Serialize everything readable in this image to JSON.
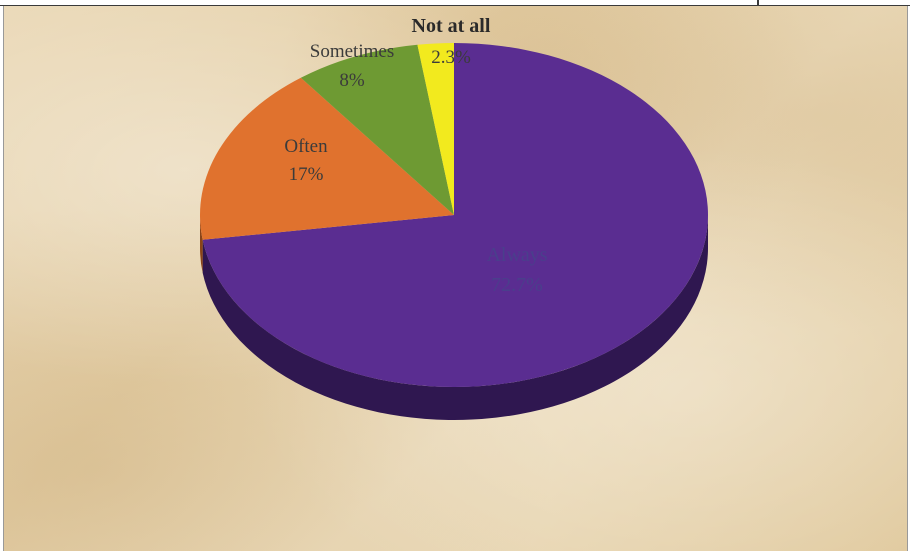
{
  "chart_data": {
    "type": "pie",
    "title": "",
    "three_d": true,
    "slices": [
      {
        "label": "Always",
        "value": 72.7,
        "value_label": "72.7%",
        "color": "#5a2d91",
        "side_color": "#2f1750"
      },
      {
        "label": "Often",
        "value": 17,
        "value_label": "17%",
        "color": "#e0722e",
        "side_color": "#8a4418"
      },
      {
        "label": "Sometimes",
        "value": 8,
        "value_label": "8%",
        "color": "#6e9a33",
        "side_color": "#3f5a1c"
      },
      {
        "label": "Not at all",
        "value": 2.3,
        "value_label": "2.3%",
        "color": "#f2ea1e",
        "side_color": "#8f8a10"
      }
    ]
  },
  "colors": {
    "background": "#e6d2aa",
    "frame_line": "#3a3a3a"
  }
}
